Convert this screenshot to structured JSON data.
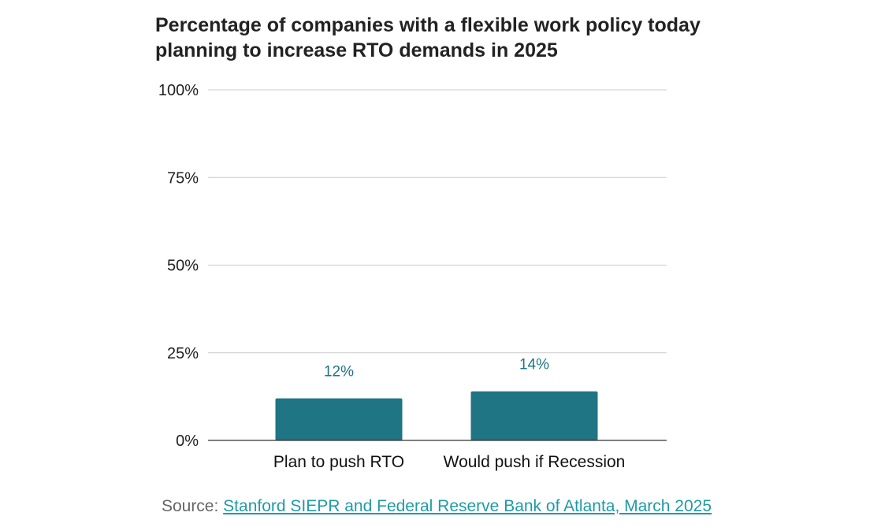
{
  "chart_data": {
    "type": "bar",
    "title": "Percentage of companies with a flexible work policy today planning to increase RTO demands in 2025",
    "categories": [
      "Plan to push RTO",
      "Would push if Recession"
    ],
    "values": [
      12,
      14
    ],
    "data_labels": [
      "12%",
      "14%"
    ],
    "xlabel": "",
    "ylabel": "",
    "ylim": [
      0,
      100
    ],
    "yticks": [
      0,
      25,
      50,
      75,
      100
    ],
    "ytick_labels": [
      "0%",
      "25%",
      "50%",
      "75%",
      "100%"
    ],
    "grid": true,
    "legend": "none",
    "bar_color": "#1f7584",
    "label_color": "#1f7584"
  },
  "source": {
    "prefix": "Source: ",
    "link_text": "Stanford SIEPR and Federal Reserve Bank of Atlanta, March 2025",
    "link_color": "#1f9ba6"
  }
}
